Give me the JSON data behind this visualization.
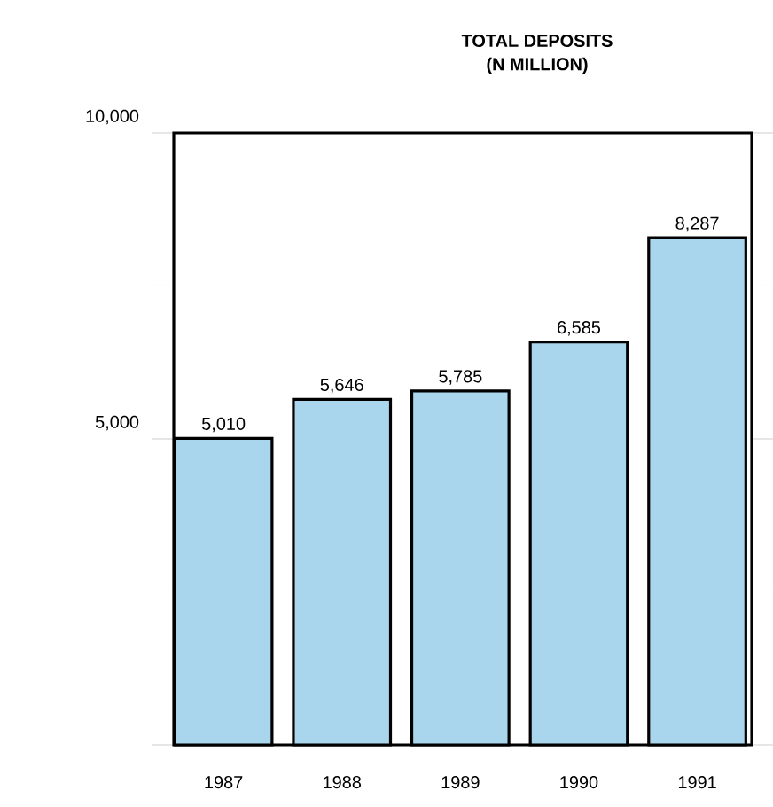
{
  "chart_data": {
    "type": "bar",
    "title": "TOTAL DEPOSITS",
    "subtitle": "(N MILLION)",
    "categories": [
      "1987",
      "1988",
      "1989",
      "1990",
      "1991"
    ],
    "values": [
      5010,
      5646,
      5785,
      6585,
      8287
    ],
    "value_labels": [
      "5,010",
      "5,646",
      "5,785",
      "6,585",
      "8,287"
    ],
    "color": "#a9d6ec",
    "ylim": [
      0,
      10000
    ],
    "yticks": [
      {
        "value": 0,
        "label": null
      },
      {
        "value": 2500,
        "label": null
      },
      {
        "value": 5000,
        "label": "5,000"
      },
      {
        "value": 7500,
        "label": null
      },
      {
        "value": 10000,
        "label": "10,000"
      }
    ]
  }
}
